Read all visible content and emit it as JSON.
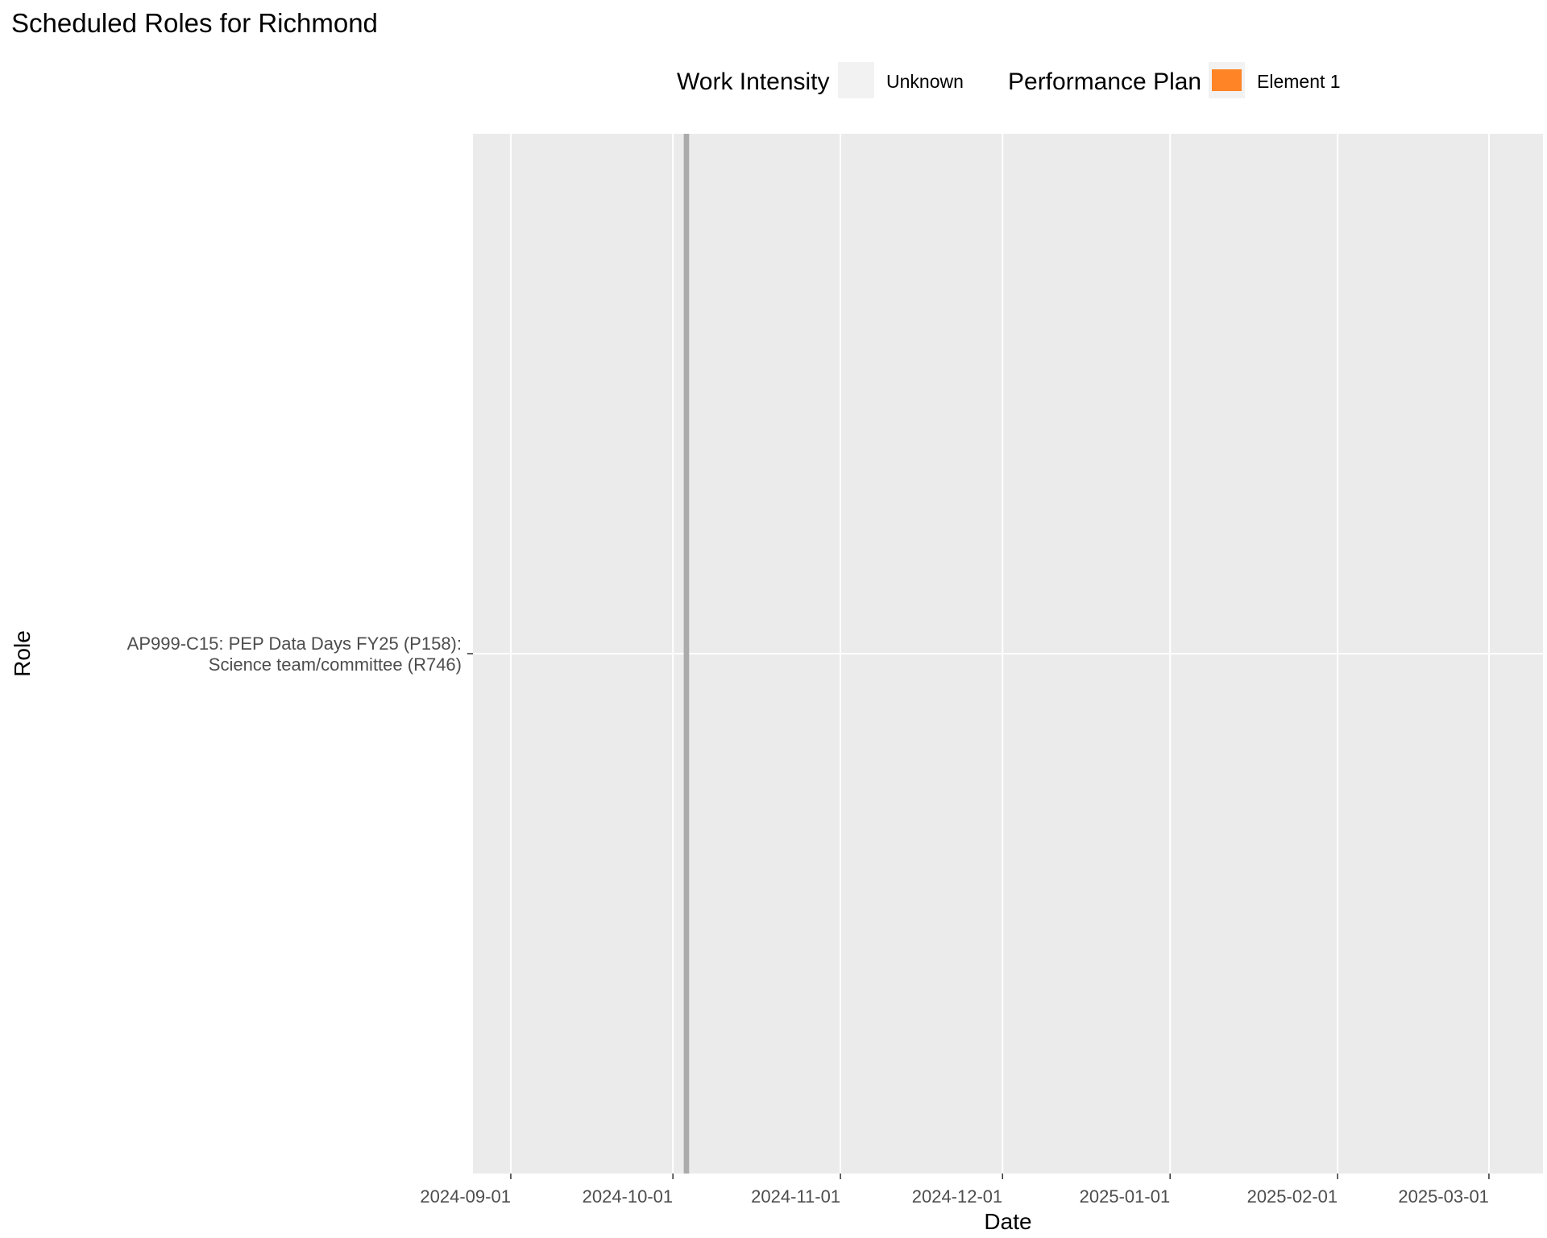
{
  "chart_data": {
    "type": "gantt",
    "title": "Scheduled Roles for Richmond",
    "xlabel": "Date",
    "ylabel": "Role",
    "x_ticks": [
      "2024-09-01",
      "2024-10-01",
      "2024-11-01",
      "2024-12-01",
      "2025-01-01",
      "2025-02-01",
      "2025-03-01"
    ],
    "xlim": [
      "2024-08-25",
      "2025-03-11"
    ],
    "grid": true,
    "legend_position": "top",
    "categories": [
      "AP999-C15: PEP Data Days FY25 (P158): Science team/committee (R746)"
    ],
    "tasks": [
      {
        "role": "AP999-C15: PEP Data Days FY25 (P158): Science team/committee (R746)",
        "start": "2024-10-03",
        "end": "2024-10-03",
        "work_intensity": "Unknown",
        "performance_plan": "Element 1"
      }
    ],
    "legends": [
      {
        "title": "Work Intensity",
        "items": [
          {
            "label": "Unknown",
            "color": "#f2f2f2"
          }
        ]
      },
      {
        "title": "Performance Plan",
        "items": [
          {
            "label": "Element 1",
            "color": "#ff8426"
          }
        ]
      }
    ],
    "colors": {
      "panel": "#ebebeb",
      "grid": "#ffffff",
      "bar": "#ababab",
      "tick_text": "#4d4d4d"
    }
  }
}
